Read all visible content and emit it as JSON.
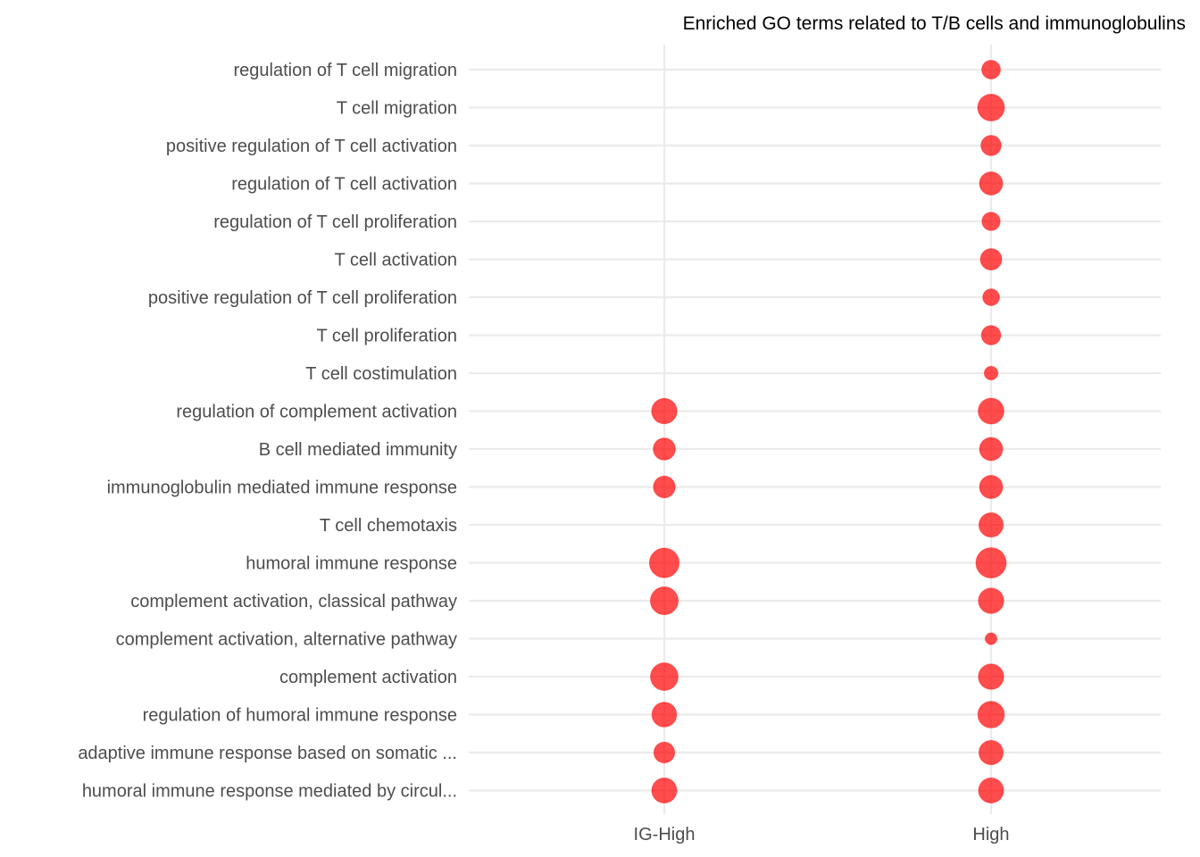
{
  "chart_data": {
    "type": "scatter",
    "title": "Enriched GO terms related to T/B cells and immunoglobulins",
    "xlabel": "",
    "ylabel": "",
    "grid": true,
    "legend": "none",
    "point_color": "#ff0000",
    "x_categories": [
      "IG-High",
      "High"
    ],
    "y_categories": [
      "regulation of T cell migration",
      "T cell migration",
      "positive regulation of T cell activation",
      "regulation of T cell activation",
      "regulation of T cell proliferation",
      "T cell activation",
      "positive regulation of T cell proliferation",
      "T cell proliferation",
      "T cell costimulation",
      "regulation of complement activation",
      "B cell mediated immunity",
      "immunoglobulin mediated immune response",
      "T cell chemotaxis",
      "humoral immune response",
      "complement activation, classical pathway",
      "complement activation, alternative pathway",
      "complement activation",
      "regulation of humoral immune response",
      "adaptive immune response based on somatic ...",
      "humoral immune response mediated by circul..."
    ],
    "size_scale_note": "point size is relative (unlabeled); values estimated on 0-1 scale",
    "points": [
      {
        "x": "High",
        "y": "regulation of T cell migration",
        "size": 0.25
      },
      {
        "x": "High",
        "y": "T cell migration",
        "size": 0.72
      },
      {
        "x": "High",
        "y": "positive regulation of T cell activation",
        "size": 0.32
      },
      {
        "x": "High",
        "y": "regulation of T cell activation",
        "size": 0.48
      },
      {
        "x": "High",
        "y": "regulation of T cell proliferation",
        "size": 0.23
      },
      {
        "x": "High",
        "y": "T cell activation",
        "size": 0.38
      },
      {
        "x": "High",
        "y": "positive regulation of T cell proliferation",
        "size": 0.17
      },
      {
        "x": "High",
        "y": "T cell proliferation",
        "size": 0.28
      },
      {
        "x": "High",
        "y": "T cell costimulation",
        "size": 0.08
      },
      {
        "x": "IG-High",
        "y": "regulation of complement activation",
        "size": 0.62
      },
      {
        "x": "High",
        "y": "regulation of complement activation",
        "size": 0.65
      },
      {
        "x": "IG-High",
        "y": "B cell mediated immunity",
        "size": 0.42
      },
      {
        "x": "High",
        "y": "B cell mediated immunity",
        "size": 0.48
      },
      {
        "x": "IG-High",
        "y": "immunoglobulin mediated immune response",
        "size": 0.4
      },
      {
        "x": "High",
        "y": "immunoglobulin mediated immune response",
        "size": 0.48
      },
      {
        "x": "High",
        "y": "T cell chemotaxis",
        "size": 0.55
      },
      {
        "x": "IG-High",
        "y": "humoral immune response",
        "size": 0.95
      },
      {
        "x": "High",
        "y": "humoral immune response",
        "size": 1.0
      },
      {
        "x": "IG-High",
        "y": "complement activation, classical pathway",
        "size": 0.8
      },
      {
        "x": "High",
        "y": "complement activation, classical pathway",
        "size": 0.62
      },
      {
        "x": "High",
        "y": "complement activation, alternative pathway",
        "size": 0.04
      },
      {
        "x": "IG-High",
        "y": "complement activation",
        "size": 0.78
      },
      {
        "x": "High",
        "y": "complement activation",
        "size": 0.62
      },
      {
        "x": "IG-High",
        "y": "regulation of humoral immune response",
        "size": 0.58
      },
      {
        "x": "High",
        "y": "regulation of humoral immune response",
        "size": 0.7
      },
      {
        "x": "IG-High",
        "y": "adaptive immune response based on somatic ...",
        "size": 0.35
      },
      {
        "x": "High",
        "y": "adaptive immune response based on somatic ...",
        "size": 0.55
      },
      {
        "x": "IG-High",
        "y": "humoral immune response mediated by circul...",
        "size": 0.6
      },
      {
        "x": "High",
        "y": "humoral immune response mediated by circul...",
        "size": 0.6
      }
    ]
  }
}
